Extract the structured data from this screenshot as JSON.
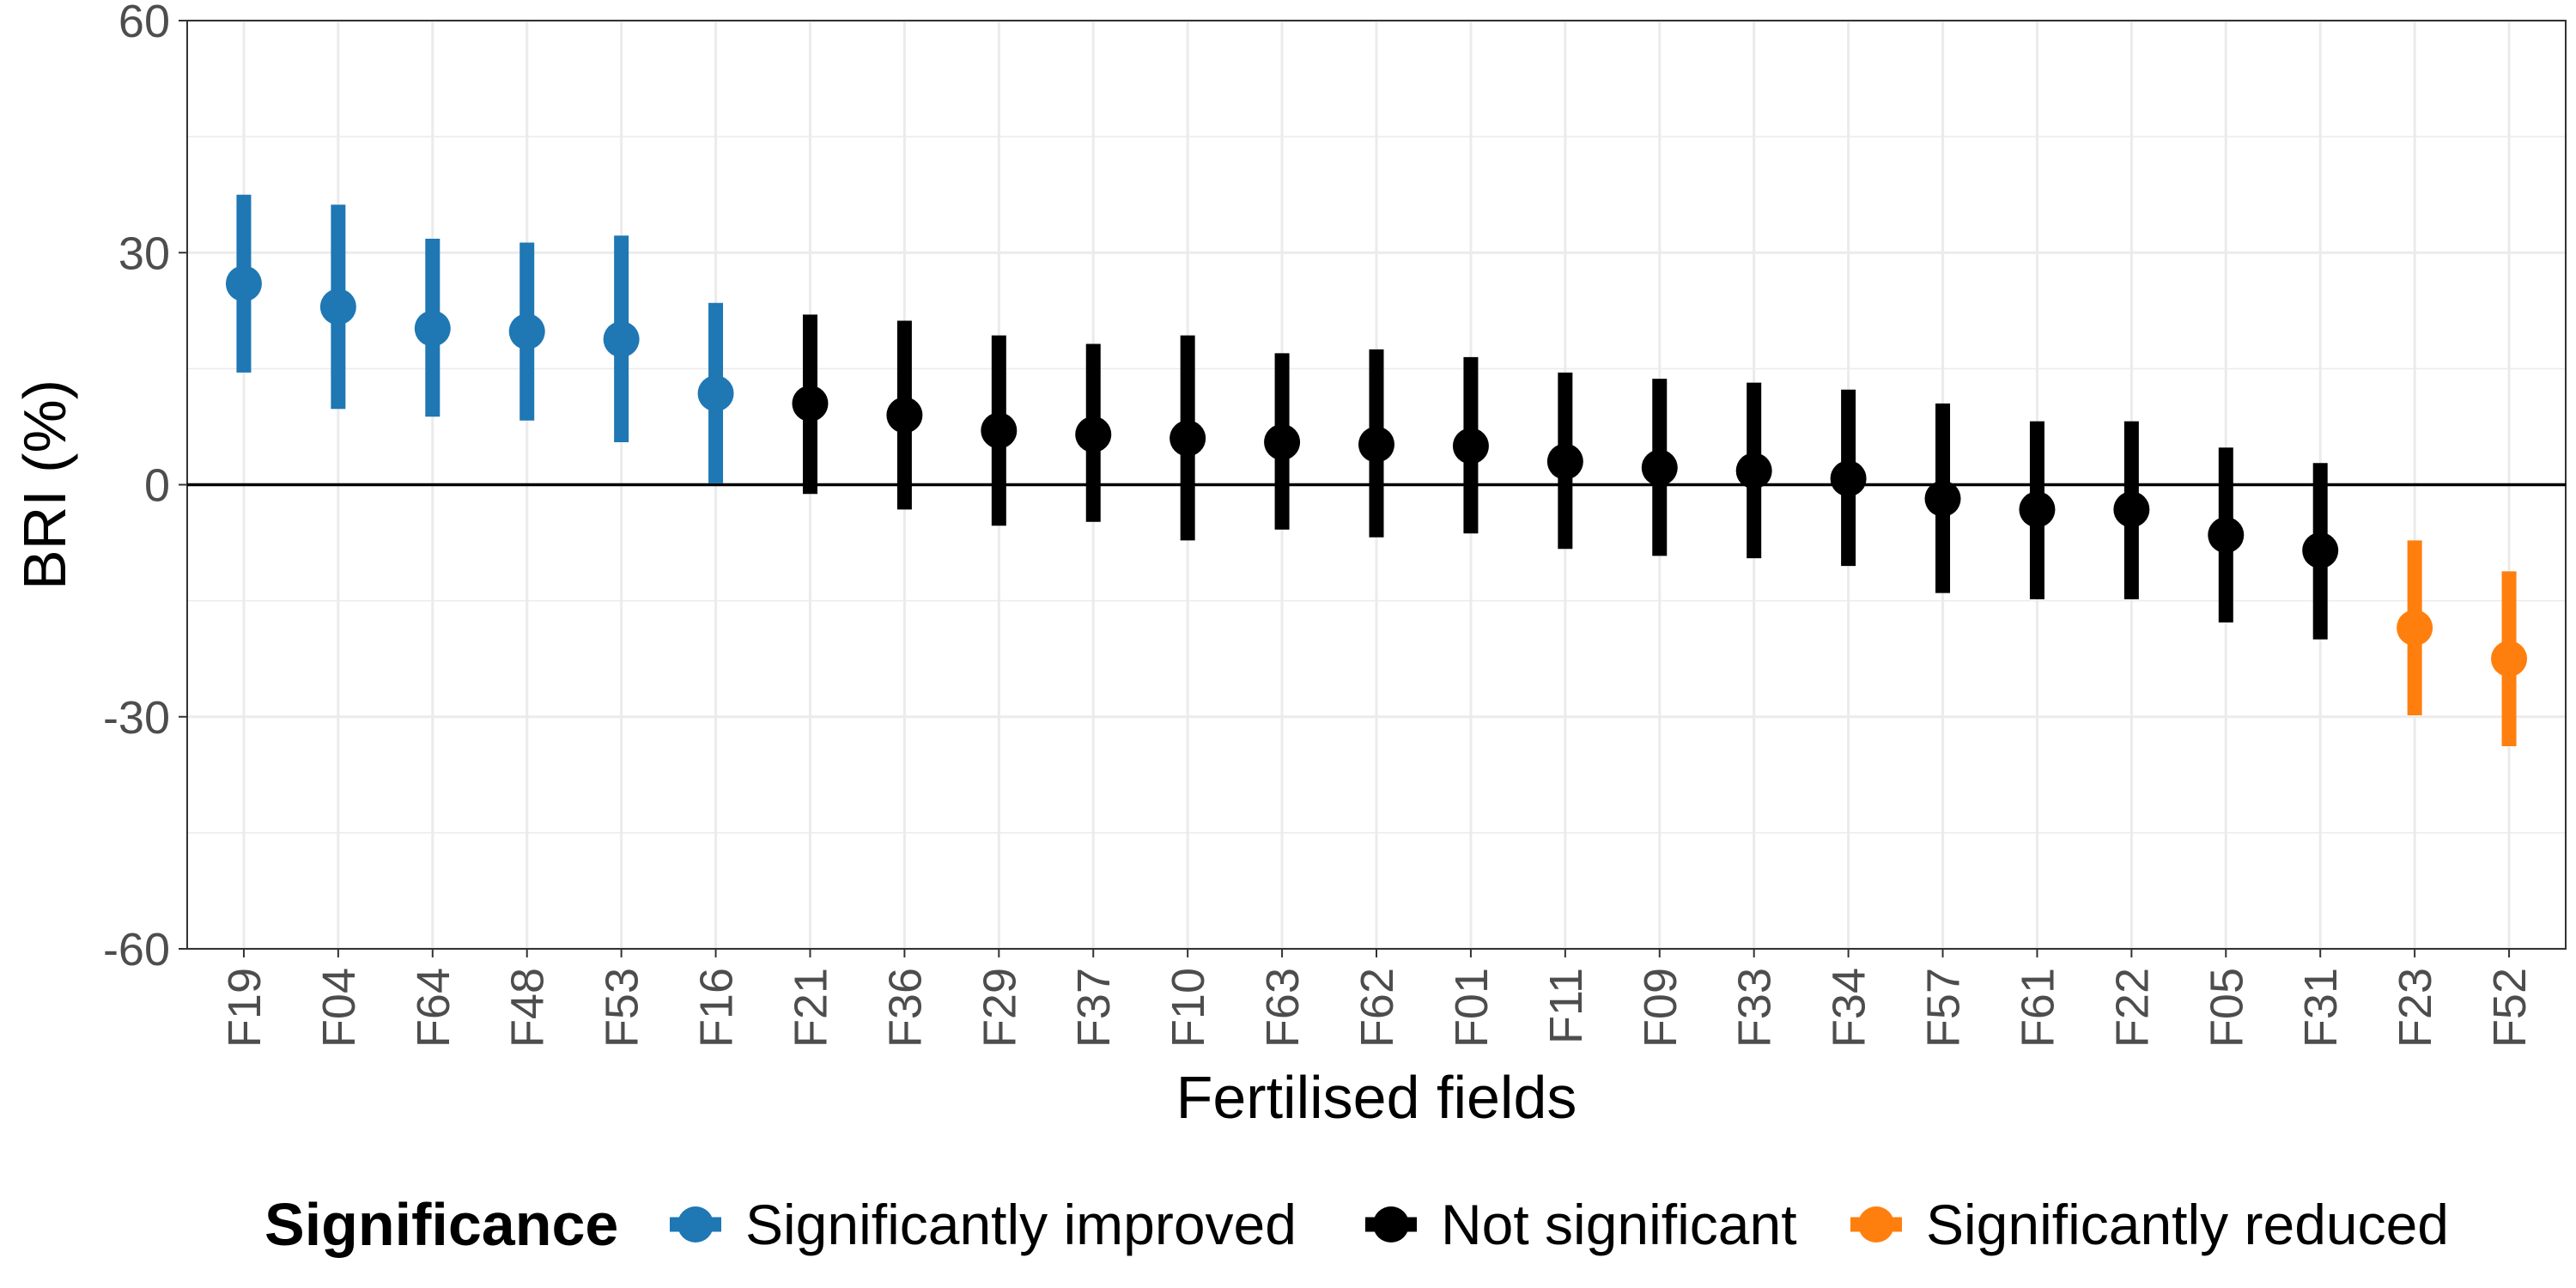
{
  "chart_data": {
    "type": "scatter",
    "title": "",
    "xlabel": "Fertilised fields",
    "ylabel": "BRI (%)",
    "ylim": [
      -60,
      60
    ],
    "yticks": [
      "60",
      "30",
      "0",
      "-30",
      "-60"
    ],
    "grid": true,
    "legend_placement": "bottom",
    "legend": {
      "title": "Significance",
      "entries": [
        {
          "label": "Significantly improved",
          "color": "#1f77b4"
        },
        {
          "label": "Not significant",
          "color": "#000000"
        },
        {
          "label": "Significantly reduced",
          "color": "#ff7f0e"
        }
      ]
    },
    "categories": [
      "F19",
      "F04",
      "F64",
      "F48",
      "F53",
      "F16",
      "F21",
      "F36",
      "F29",
      "F37",
      "F10",
      "F63",
      "F62",
      "F01",
      "F11",
      "F09",
      "F33",
      "F34",
      "F57",
      "F61",
      "F22",
      "F05",
      "F31",
      "F23",
      "F52"
    ],
    "points": [
      {
        "field": "F19",
        "estimate": 26.0,
        "lower": 14.5,
        "upper": 37.5,
        "group": 0
      },
      {
        "field": "F04",
        "estimate": 23.0,
        "lower": 9.8,
        "upper": 36.2,
        "group": 0
      },
      {
        "field": "F64",
        "estimate": 20.2,
        "lower": 8.8,
        "upper": 31.8,
        "group": 0
      },
      {
        "field": "F48",
        "estimate": 19.8,
        "lower": 8.3,
        "upper": 31.3,
        "group": 0
      },
      {
        "field": "F53",
        "estimate": 18.8,
        "lower": 5.5,
        "upper": 32.2,
        "group": 0
      },
      {
        "field": "F16",
        "estimate": 11.8,
        "lower": 0.2,
        "upper": 23.5,
        "group": 0
      },
      {
        "field": "F21",
        "estimate": 10.5,
        "lower": -1.2,
        "upper": 22.0,
        "group": 1
      },
      {
        "field": "F36",
        "estimate": 9.0,
        "lower": -3.2,
        "upper": 21.2,
        "group": 1
      },
      {
        "field": "F29",
        "estimate": 7.0,
        "lower": -5.3,
        "upper": 19.3,
        "group": 1
      },
      {
        "field": "F37",
        "estimate": 6.5,
        "lower": -4.8,
        "upper": 18.2,
        "group": 1
      },
      {
        "field": "F10",
        "estimate": 6.0,
        "lower": -7.2,
        "upper": 19.3,
        "group": 1
      },
      {
        "field": "F63",
        "estimate": 5.5,
        "lower": -5.8,
        "upper": 17.0,
        "group": 1
      },
      {
        "field": "F62",
        "estimate": 5.2,
        "lower": -6.8,
        "upper": 17.5,
        "group": 1
      },
      {
        "field": "F01",
        "estimate": 5.0,
        "lower": -6.3,
        "upper": 16.5,
        "group": 1
      },
      {
        "field": "F11",
        "estimate": 3.0,
        "lower": -8.3,
        "upper": 14.5,
        "group": 1
      },
      {
        "field": "F09",
        "estimate": 2.2,
        "lower": -9.2,
        "upper": 13.7,
        "group": 1
      },
      {
        "field": "F33",
        "estimate": 1.8,
        "lower": -9.5,
        "upper": 13.2,
        "group": 1
      },
      {
        "field": "F34",
        "estimate": 0.8,
        "lower": -10.5,
        "upper": 12.3,
        "group": 1
      },
      {
        "field": "F57",
        "estimate": -1.8,
        "lower": -14.0,
        "upper": 10.5,
        "group": 1
      },
      {
        "field": "F61",
        "estimate": -3.2,
        "lower": -14.8,
        "upper": 8.2,
        "group": 1
      },
      {
        "field": "F22",
        "estimate": -3.2,
        "lower": -14.8,
        "upper": 8.2,
        "group": 1
      },
      {
        "field": "F05",
        "estimate": -6.5,
        "lower": -17.8,
        "upper": 4.8,
        "group": 1
      },
      {
        "field": "F31",
        "estimate": -8.5,
        "lower": -20.0,
        "upper": 2.8,
        "group": 1
      },
      {
        "field": "F23",
        "estimate": -18.5,
        "lower": -29.8,
        "upper": -7.2,
        "group": 2
      },
      {
        "field": "F52",
        "estimate": -22.5,
        "lower": -33.8,
        "upper": -11.2,
        "group": 2
      }
    ]
  }
}
